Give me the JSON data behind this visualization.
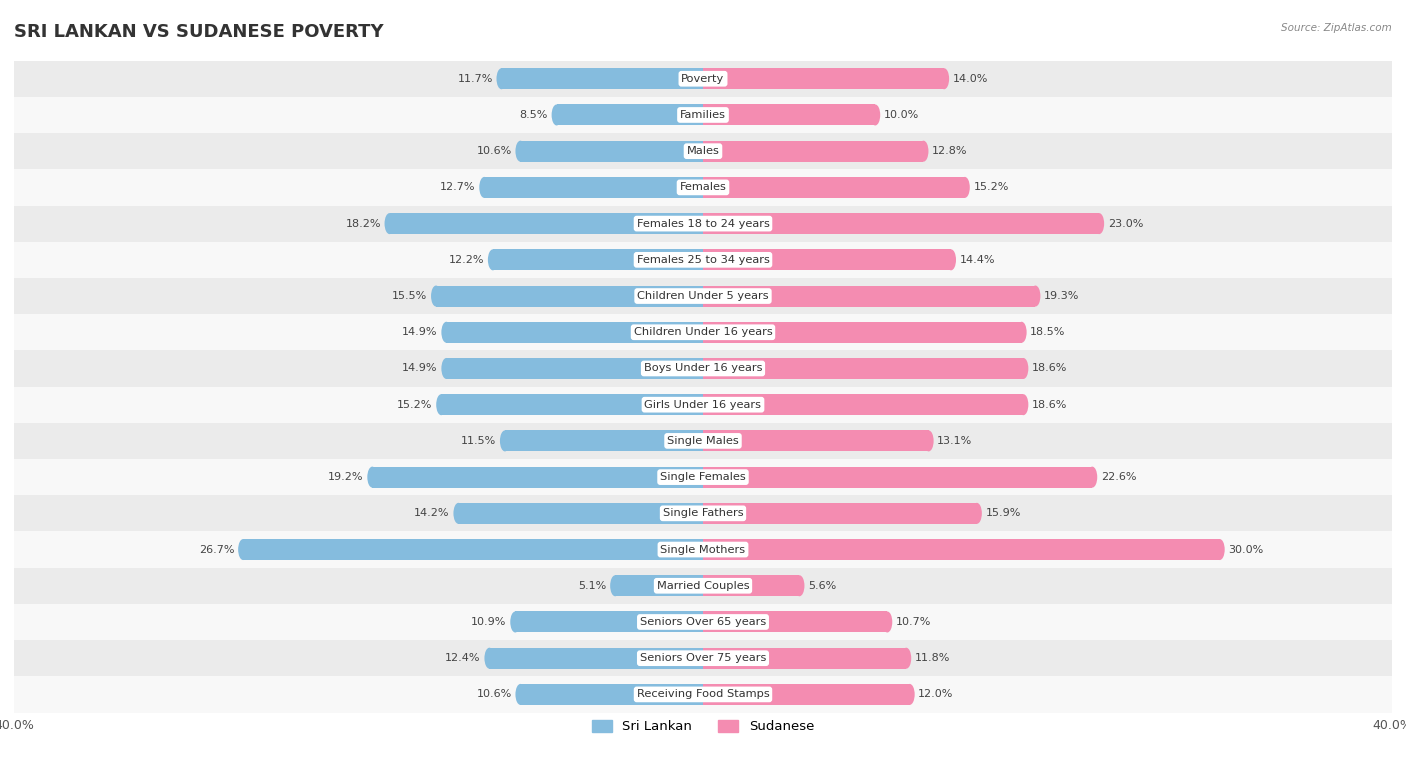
{
  "title": "SRI LANKAN VS SUDANESE POVERTY",
  "source": "Source: ZipAtlas.com",
  "categories": [
    "Poverty",
    "Families",
    "Males",
    "Females",
    "Females 18 to 24 years",
    "Females 25 to 34 years",
    "Children Under 5 years",
    "Children Under 16 years",
    "Boys Under 16 years",
    "Girls Under 16 years",
    "Single Males",
    "Single Females",
    "Single Fathers",
    "Single Mothers",
    "Married Couples",
    "Seniors Over 65 years",
    "Seniors Over 75 years",
    "Receiving Food Stamps"
  ],
  "sri_lankan": [
    11.7,
    8.5,
    10.6,
    12.7,
    18.2,
    12.2,
    15.5,
    14.9,
    14.9,
    15.2,
    11.5,
    19.2,
    14.2,
    26.7,
    5.1,
    10.9,
    12.4,
    10.6
  ],
  "sudanese": [
    14.0,
    10.0,
    12.8,
    15.2,
    23.0,
    14.4,
    19.3,
    18.5,
    18.6,
    18.6,
    13.1,
    22.6,
    15.9,
    30.0,
    5.6,
    10.7,
    11.8,
    12.0
  ],
  "sri_lankan_color": "#85bcde",
  "sudanese_color": "#f48cb1",
  "background_row_even": "#ebebeb",
  "background_row_odd": "#f8f8f8",
  "axis_max": 40.0,
  "bar_height": 0.58,
  "title_fontsize": 13,
  "label_fontsize": 8.2,
  "value_fontsize": 8.0,
  "legend_fontsize": 9.5
}
